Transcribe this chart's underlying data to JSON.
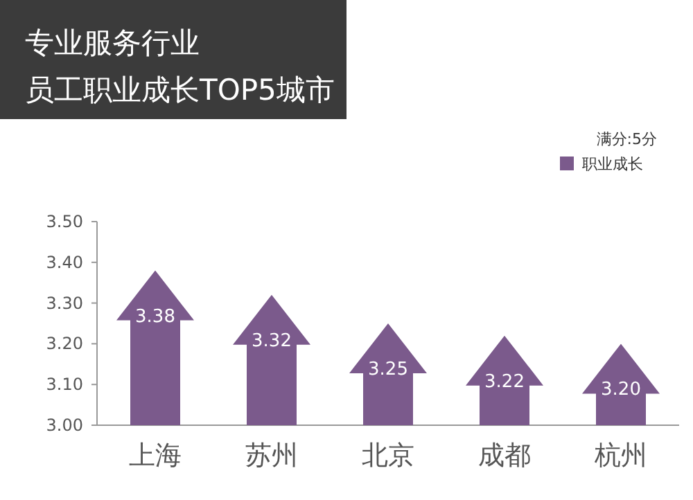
{
  "chart_data": {
    "type": "bar",
    "title": "专业服务行业",
    "subtitle": "员工职业成长TOP5城市",
    "categories": [
      "上海",
      "苏州",
      "北京",
      "成都",
      "杭州"
    ],
    "series": [
      {
        "name": "职业成长",
        "color": "#7b5a8c",
        "values": [
          3.38,
          3.32,
          3.25,
          3.22,
          3.2
        ]
      }
    ],
    "ylim": [
      3.0,
      3.5
    ],
    "yticks": [
      {
        "value": 3.0,
        "label": "3.00"
      },
      {
        "value": 3.1,
        "label": "3.10"
      },
      {
        "value": 3.2,
        "label": "3.20"
      },
      {
        "value": 3.3,
        "label": "3.30"
      },
      {
        "value": 3.4,
        "label": "3.40"
      },
      {
        "value": 3.5,
        "label": "3.50"
      }
    ],
    "annotations": [
      "满分:5分"
    ],
    "value_labels": [
      "3.38",
      "3.32",
      "3.25",
      "3.22",
      "3.20"
    ],
    "legend": "top right"
  }
}
